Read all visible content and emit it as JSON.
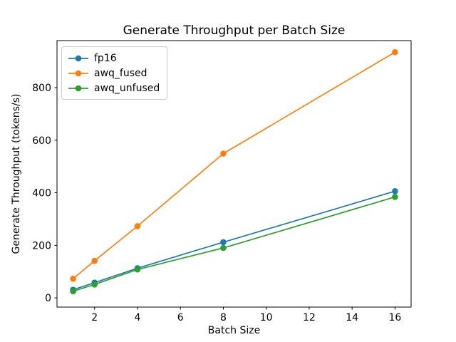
{
  "figure": {
    "background": "#ffffff",
    "spine_color": "#000000"
  },
  "chart_data": {
    "type": "line",
    "title": "Generate Throughput per Batch Size",
    "xlabel": "Batch Size",
    "ylabel": "Generate Throughput (tokens/s)",
    "x": [
      1,
      2,
      4,
      8,
      16
    ],
    "series": [
      {
        "name": "fp16",
        "color": "#1f77b4",
        "values": [
          31,
          58,
          113,
          212,
          406
        ]
      },
      {
        "name": "awq_fused",
        "color": "#ff7f0e",
        "values": [
          73,
          141,
          273,
          549,
          935
        ]
      },
      {
        "name": "awq_unfused",
        "color": "#2ca02c",
        "values": [
          25,
          51,
          108,
          190,
          384
        ]
      }
    ],
    "xticks": [
      2,
      4,
      6,
      8,
      10,
      12,
      14,
      16
    ],
    "yticks": [
      0,
      200,
      400,
      600,
      800
    ],
    "xlim": [
      0.25,
      16.75
    ],
    "ylim": [
      -35,
      979
    ],
    "grid": false,
    "marker": "o",
    "legend_position": "upper left"
  }
}
